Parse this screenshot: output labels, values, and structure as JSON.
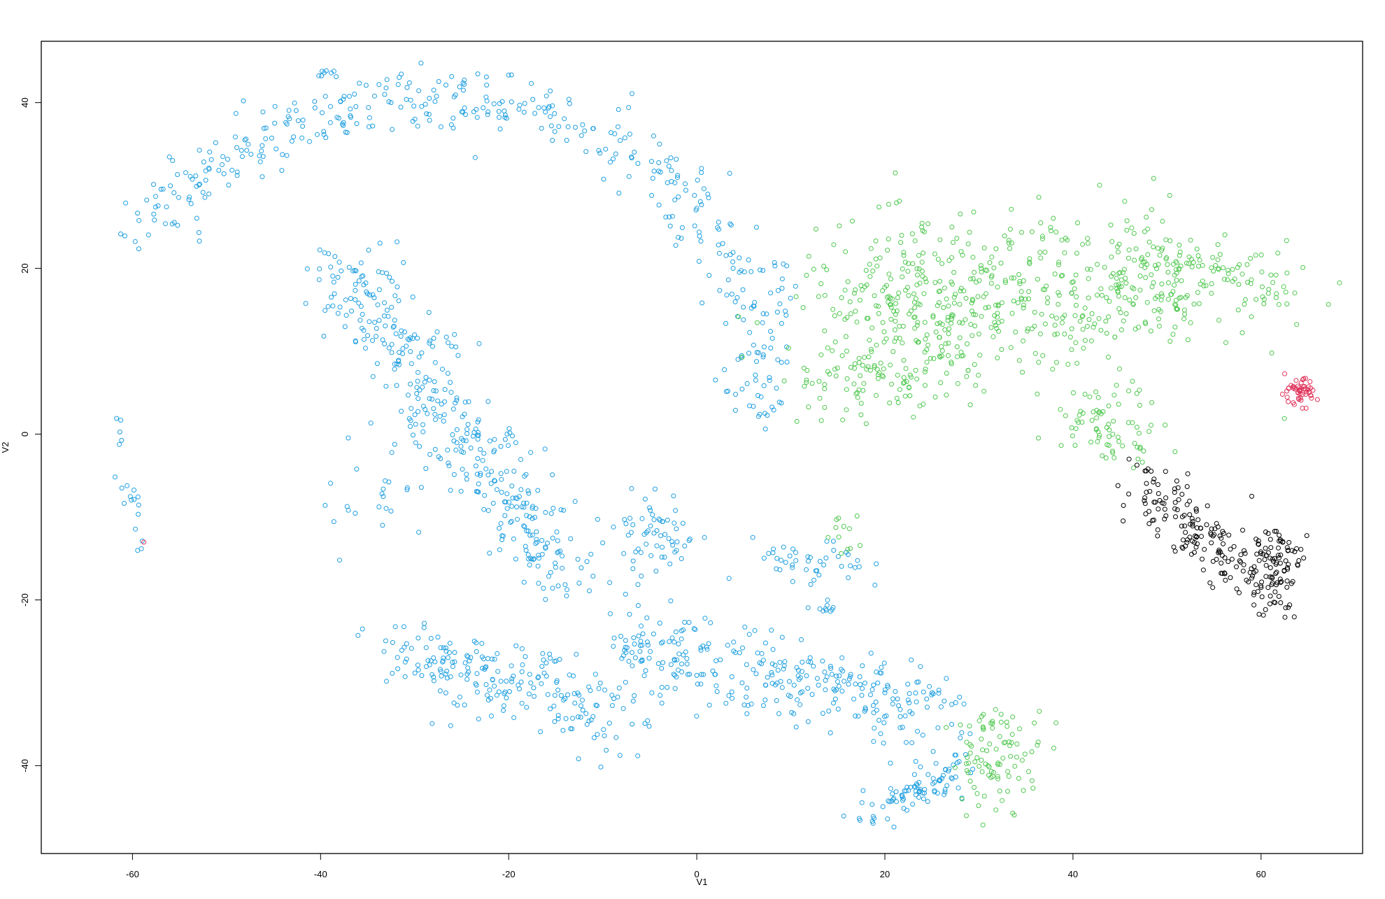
{
  "chart_data": {
    "type": "scatter",
    "title": "",
    "xlabel": "V1",
    "ylabel": "V2",
    "xlim": [
      -69.7,
      70.8
    ],
    "ylim": [
      -50.6,
      47.4
    ],
    "x_ticks": [
      -60,
      -40,
      -20,
      0,
      20,
      40,
      60
    ],
    "y_ticks": [
      -40,
      -20,
      0,
      20,
      40
    ],
    "x_tick_labels": [
      "-60",
      "-40",
      "-20",
      "0",
      "20",
      "40",
      "60"
    ],
    "y_tick_labels": [
      "-40",
      "-20",
      "0",
      "20",
      "40"
    ],
    "grid": false,
    "legend": "none",
    "marker": "open-circle",
    "colors": {
      "blue": "#1f9fe0",
      "green": "#50c850",
      "black": "#000000",
      "red": "#e0335b"
    },
    "series": [
      {
        "color": "blue",
        "clusters": [
          {
            "kind": "arc",
            "cx": -28,
            "cy": 8.3,
            "rx": 35,
            "ry": 32,
            "a0": 210,
            "a1": 370,
            "spread": 2.0,
            "n": 420
          },
          {
            "kind": "seg",
            "p0": [
              -38,
              21
            ],
            "p1": [
              -13,
              -19
            ],
            "spread": 2.4,
            "n": 380
          },
          {
            "kind": "seg",
            "p0": [
              -32,
              -26
            ],
            "p1": [
              -8,
              -34
            ],
            "spread": 2.5,
            "n": 220
          },
          {
            "kind": "seg",
            "p0": [
              -8,
              -25
            ],
            "p1": [
              28,
              -34
            ],
            "spread": 2.5,
            "n": 300
          },
          {
            "kind": "seg",
            "p0": [
              18,
              -46
            ],
            "p1": [
              28,
              -40
            ],
            "spread": 1.2,
            "n": 90
          },
          {
            "kind": "blob",
            "c": [
              -4,
              -12
            ],
            "sx": 2.0,
            "sy": 2.6,
            "n": 60
          },
          {
            "kind": "blob",
            "c": [
              12,
              -16
            ],
            "sx": 3.0,
            "sy": 1.6,
            "n": 45
          },
          {
            "kind": "blob",
            "c": [
              -34,
              -7
            ],
            "sx": 3.0,
            "sy": 3.5,
            "n": 25
          },
          {
            "kind": "blob",
            "c": [
              14,
              -21
            ],
            "sx": 0.4,
            "sy": 0.8,
            "n": 8
          },
          {
            "kind": "seg",
            "p0": [
              -62,
              4
            ],
            "p1": [
              -59,
              -16
            ],
            "spread": 0.5,
            "n": 20
          },
          {
            "kind": "blob",
            "c": [
              -39,
              43.5
            ],
            "sx": 0.6,
            "sy": 0.3,
            "n": 8
          }
        ]
      },
      {
        "color": "green",
        "clusters": [
          {
            "kind": "blob",
            "c": [
              24,
              15
            ],
            "sx": 7,
            "sy": 5,
            "n": 320
          },
          {
            "kind": "blob",
            "c": [
              42,
              17
            ],
            "sx": 8,
            "sy": 5,
            "n": 260
          },
          {
            "kind": "seg",
            "p0": [
              48,
              21
            ],
            "p1": [
              63,
              17
            ],
            "spread": 2.5,
            "n": 110
          },
          {
            "kind": "seg",
            "p0": [
              13,
              4
            ],
            "p1": [
              27,
              8
            ],
            "spread": 2.0,
            "n": 70
          },
          {
            "kind": "blob",
            "c": [
              44,
              1
            ],
            "sx": 3.0,
            "sy": 2.2,
            "n": 70
          },
          {
            "kind": "blob",
            "c": [
              32,
              -39
            ],
            "sx": 2.5,
            "sy": 3.0,
            "n": 95
          },
          {
            "kind": "blob",
            "c": [
              16,
              -12
            ],
            "sx": 1.2,
            "sy": 1.5,
            "n": 12
          }
        ]
      },
      {
        "color": "black",
        "clusters": [
          {
            "kind": "seg",
            "p0": [
              48,
              -6
            ],
            "p1": [
              57,
              -16
            ],
            "spread": 1.8,
            "n": 140
          },
          {
            "kind": "blob",
            "c": [
              61,
              -16
            ],
            "sx": 1.6,
            "sy": 2.8,
            "n": 110
          }
        ]
      },
      {
        "color": "red",
        "clusters": [
          {
            "kind": "blob",
            "c": [
              64,
              5
            ],
            "sx": 1.0,
            "sy": 0.8,
            "n": 55
          },
          {
            "kind": "blob",
            "c": [
              -59,
              -13
            ],
            "sx": 0.1,
            "sy": 0.1,
            "n": 1
          }
        ]
      }
    ]
  }
}
